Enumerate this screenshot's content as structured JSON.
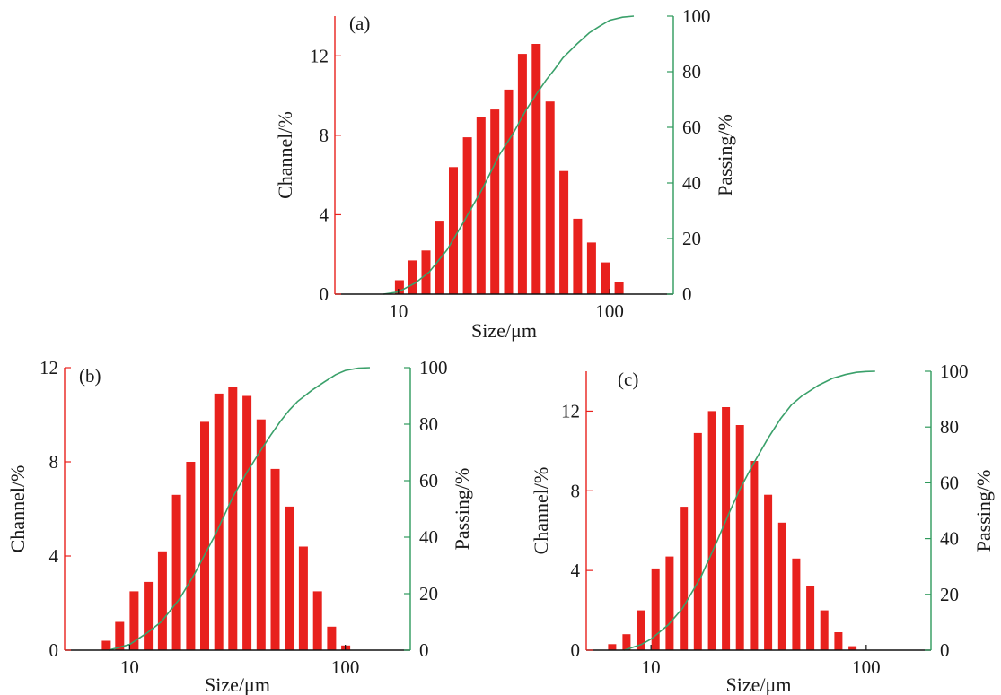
{
  "colors": {
    "bar": "#e8211d",
    "left_axis": "#e8211d",
    "right_axis": "#2e9a5c",
    "curve": "#3aa06a",
    "baseline": "#111111"
  },
  "chart_data": [
    {
      "type": "bar",
      "panel_label": "(a)",
      "xlabel": "Size/μm",
      "ylabel_left": "Channel/%",
      "ylabel_right": "Passing/%",
      "x_scale": "log",
      "xlim": [
        5,
        200
      ],
      "ylim_left": [
        0,
        14
      ],
      "ylim_right": [
        0,
        100
      ],
      "x_ticks": [
        10,
        100
      ],
      "x_tick_labels": [
        "10",
        "100"
      ],
      "y_left_ticks": [
        0,
        4,
        8,
        12
      ],
      "y_left_tick_labels": [
        "0",
        "4",
        "8",
        "12"
      ],
      "y_right_ticks": [
        0,
        20,
        40,
        60,
        80,
        100
      ],
      "y_right_tick_labels": [
        "0",
        "20",
        "40",
        "60",
        "80",
        "100"
      ],
      "series": [
        {
          "x": [
            10.1,
            11.6,
            13.5,
            15.7,
            18.2,
            21.2,
            24.6,
            28.6,
            33.2,
            38.6,
            44.9,
            52.2,
            60.7,
            70.5,
            82.0,
            95.3,
            110.8,
            128.8
          ],
          "values": [
            0.7,
            1.7,
            2.2,
            3.7,
            6.4,
            7.9,
            8.9,
            9.3,
            10.3,
            12.1,
            12.6,
            9.7,
            6.2,
            3.8,
            2.6,
            1.6,
            0.6,
            0.0
          ]
        },
        {
          "name": "Passing",
          "type": "line",
          "x": [
            8.5,
            10,
            12,
            14,
            17,
            20,
            25,
            30,
            35,
            40,
            45,
            50,
            55,
            60,
            70,
            80,
            90,
            100,
            115,
            130
          ],
          "values": [
            0,
            0.8,
            4,
            8,
            16,
            25,
            38,
            50,
            58,
            66,
            72,
            77,
            81,
            85,
            90,
            94,
            96.5,
            98.5,
            99.6,
            100
          ]
        }
      ]
    },
    {
      "type": "bar",
      "panel_label": "(b)",
      "xlabel": "Size/μm",
      "ylabel_left": "Channel/%",
      "ylabel_right": "Passing/%",
      "x_scale": "log",
      "xlim": [
        5,
        200
      ],
      "ylim_left": [
        0,
        12
      ],
      "ylim_right": [
        0,
        100
      ],
      "x_ticks": [
        10,
        100
      ],
      "x_tick_labels": [
        "10",
        "100"
      ],
      "y_left_ticks": [
        0,
        4,
        8,
        12
      ],
      "y_left_tick_labels": [
        "0",
        "4",
        "8",
        "12"
      ],
      "y_right_ticks": [
        0,
        20,
        40,
        60,
        80,
        100
      ],
      "y_right_tick_labels": [
        "0",
        "20",
        "40",
        "60",
        "80",
        "100"
      ],
      "series": [
        {
          "x": [
            7.8,
            9.0,
            10.5,
            12.2,
            14.2,
            16.5,
            19.2,
            22.3,
            25.9,
            30.1,
            35.0,
            40.7,
            47.3,
            55.0,
            63.9,
            74.3,
            86.4,
            100.4,
            116.7,
            135.7
          ],
          "values": [
            0.4,
            1.2,
            2.5,
            2.9,
            4.2,
            6.6,
            8.0,
            9.7,
            10.9,
            11.2,
            10.8,
            9.8,
            7.7,
            6.1,
            4.4,
            2.5,
            1.0,
            0.2,
            0.0,
            0.0
          ]
        },
        {
          "name": "Passing",
          "type": "line",
          "x": [
            8.0,
            10,
            12,
            14,
            17,
            20,
            25,
            30,
            35,
            40,
            45,
            50,
            55,
            60,
            70,
            80,
            90,
            100,
            115,
            130
          ],
          "values": [
            0,
            2,
            6,
            10,
            18,
            27,
            41,
            54,
            63,
            70,
            76,
            81,
            85,
            88,
            92,
            95,
            97.5,
            99,
            99.8,
            100
          ]
        }
      ]
    },
    {
      "type": "bar",
      "panel_label": "(c)",
      "xlabel": "Size/μm",
      "ylabel_left": "Channel/%",
      "ylabel_right": "Passing/%",
      "x_scale": "log",
      "xlim": [
        5,
        200
      ],
      "ylim_left": [
        0,
        14
      ],
      "ylim_right": [
        0,
        100
      ],
      "x_ticks": [
        10,
        100
      ],
      "x_tick_labels": [
        "10",
        "100"
      ],
      "y_left_ticks": [
        0,
        4,
        8,
        12
      ],
      "y_left_tick_labels": [
        "0",
        "4",
        "8",
        "12"
      ],
      "y_right_ticks": [
        0,
        20,
        40,
        60,
        80,
        100
      ],
      "y_right_tick_labels": [
        "0",
        "20",
        "40",
        "60",
        "80",
        "100"
      ],
      "series": [
        {
          "x": [
            6.6,
            7.7,
            9.0,
            10.5,
            12.2,
            14.2,
            16.5,
            19.2,
            22.3,
            25.9,
            30.1,
            35.0,
            40.7,
            47.3,
            55.0,
            63.9,
            74.3,
            86.4,
            100.4,
            116.7
          ],
          "values": [
            0.3,
            0.8,
            2.0,
            4.1,
            4.7,
            7.2,
            10.9,
            12.0,
            12.2,
            11.3,
            9.5,
            7.8,
            6.4,
            4.6,
            3.2,
            2.0,
            0.9,
            0.2,
            0.0,
            0.0
          ]
        },
        {
          "name": "Passing",
          "type": "line",
          "x": [
            7.5,
            9,
            10,
            12,
            14,
            17,
            20,
            23,
            26,
            30,
            35,
            40,
            45,
            50,
            60,
            70,
            80,
            90,
            100,
            110
          ],
          "values": [
            0,
            2,
            4,
            9,
            15,
            26,
            38,
            49,
            58,
            67,
            76,
            83,
            88,
            91,
            95,
            97.5,
            98.8,
            99.6,
            99.9,
            100
          ]
        }
      ]
    }
  ]
}
